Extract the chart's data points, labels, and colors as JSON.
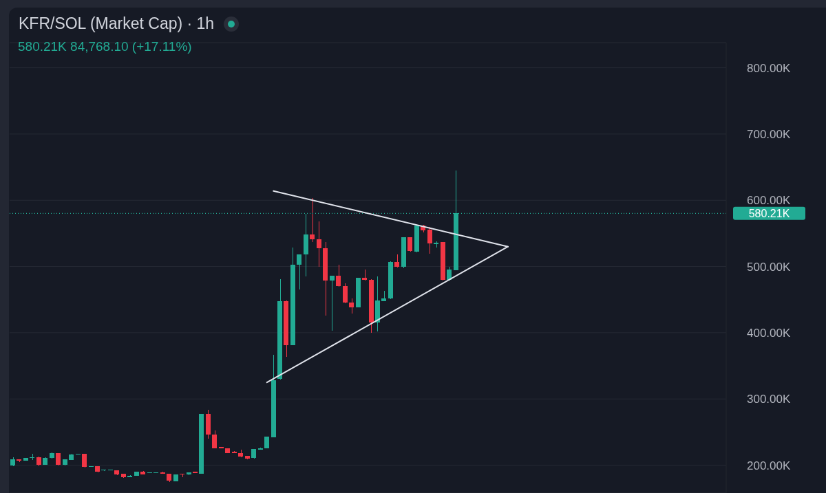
{
  "chart_data": {
    "type": "candlestick",
    "title": "KFR/SOL (Market Cap) · 1h",
    "subtitle": "580.21K 84,768.10 (+17.11%)",
    "categories": [
      null,
      null,
      null,
      null,
      null,
      null,
      null,
      null,
      null,
      null,
      null,
      null,
      null,
      null,
      null,
      null,
      null,
      null,
      null,
      null,
      null,
      null,
      null,
      null,
      null,
      null,
      null,
      null,
      null,
      null,
      null,
      null,
      null,
      null,
      null,
      null,
      null,
      null,
      null,
      null,
      null,
      null,
      null,
      null,
      null,
      null,
      null,
      null,
      null,
      null,
      null,
      null,
      null,
      null,
      null,
      null,
      null,
      null,
      null,
      null,
      null,
      null,
      null,
      null,
      null,
      null,
      null,
      null,
      null,
      null,
      null,
      null,
      null,
      null,
      null,
      null,
      null,
      null,
      null,
      null,
      null,
      null,
      null,
      null,
      null,
      null,
      null,
      null,
      null,
      null,
      null,
      null,
      null,
      null,
      null,
      null,
      null,
      null,
      null,
      null,
      null,
      null,
      null,
      null,
      null,
      null,
      null,
      null,
      null,
      null
    ],
    "ohlc": [
      [
        200,
        212,
        199,
        209
      ],
      [
        209,
        209,
        205,
        207
      ],
      [
        207,
        211,
        207,
        211
      ],
      [
        211,
        217,
        208,
        212
      ],
      [
        212,
        213,
        199,
        201
      ],
      [
        201,
        212,
        201,
        211
      ],
      [
        211,
        219,
        210,
        218
      ],
      [
        218,
        218,
        200,
        201
      ],
      [
        201,
        209,
        200,
        209
      ],
      [
        208,
        217,
        208,
        216
      ],
      [
        216,
        217,
        216,
        217
      ],
      [
        217,
        217,
        196,
        197
      ],
      [
        198,
        199,
        198,
        199
      ],
      [
        198,
        198,
        189,
        190
      ],
      [
        192,
        193,
        191,
        193
      ],
      [
        192,
        193,
        192,
        193
      ],
      [
        192,
        192,
        185,
        186
      ],
      [
        187,
        187,
        181,
        182
      ],
      [
        182,
        185,
        182,
        184
      ],
      [
        184,
        190,
        184,
        190
      ],
      [
        190,
        191,
        186,
        186
      ],
      [
        188,
        189,
        188,
        189
      ],
      [
        188,
        189,
        188,
        189
      ],
      [
        189,
        190,
        187,
        187
      ],
      [
        187,
        187,
        175,
        177
      ],
      [
        176,
        186,
        176,
        186
      ],
      [
        187,
        187,
        182,
        186
      ],
      [
        186,
        189,
        185,
        189
      ],
      [
        190,
        190,
        188,
        188
      ],
      [
        187,
        277,
        187,
        277
      ],
      [
        277,
        284,
        240,
        246
      ],
      [
        246,
        252,
        225,
        226
      ],
      [
        228,
        228,
        226,
        226
      ],
      [
        226,
        226,
        218,
        218
      ],
      [
        220,
        221,
        218,
        218
      ],
      [
        218,
        223,
        212,
        213
      ],
      [
        214,
        214,
        209,
        210
      ],
      [
        211,
        224,
        210,
        224
      ],
      [
        223,
        227,
        223,
        226
      ],
      [
        225,
        243,
        225,
        243
      ],
      [
        242,
        367,
        242,
        328
      ],
      [
        330,
        481,
        329,
        448
      ],
      [
        448,
        449,
        364,
        381
      ],
      [
        381,
        529,
        381,
        503
      ],
      [
        503,
        518,
        465,
        518
      ],
      [
        518,
        579,
        485,
        548
      ],
      [
        548,
        603,
        537,
        541
      ],
      [
        541,
        568,
        500,
        528
      ],
      [
        528,
        537,
        426,
        479
      ],
      [
        479,
        486,
        403,
        486
      ],
      [
        486,
        503,
        469,
        470
      ],
      [
        470,
        475,
        445,
        446
      ],
      [
        446,
        452,
        429,
        438
      ],
      [
        438,
        483,
        438,
        483
      ],
      [
        483,
        495,
        479,
        480
      ],
      [
        480,
        481,
        400,
        415
      ],
      [
        415,
        485,
        402,
        449
      ],
      [
        448,
        463,
        448,
        452
      ],
      [
        452,
        508,
        451,
        507
      ],
      [
        507,
        518,
        499,
        500
      ],
      [
        500,
        544,
        497,
        544
      ],
      [
        544,
        544,
        522,
        523
      ],
      [
        522,
        562,
        521,
        562
      ],
      [
        562,
        563,
        551,
        555
      ],
      [
        556,
        560,
        519,
        535
      ],
      [
        534,
        538,
        529,
        536
      ],
      [
        537,
        537,
        479,
        480
      ],
      [
        480,
        500,
        479,
        495
      ],
      [
        494,
        645,
        494,
        580.21
      ],
      null,
      null,
      null,
      null,
      null,
      null,
      null,
      null,
      null,
      null,
      null,
      null,
      null,
      null,
      null,
      null,
      null,
      null,
      null,
      null,
      null,
      null,
      null,
      null,
      null,
      null,
      null,
      null,
      null,
      null,
      null,
      null,
      null,
      null,
      null,
      null,
      null,
      null,
      null,
      null,
      null
    ],
    "colors": [
      "#22ab94",
      "#f23645",
      "#22ab94",
      "#22ab94",
      "#f23645",
      "#22ab94",
      "#22ab94",
      "#f23645",
      "#22ab94",
      "#22ab94",
      "#22ab94",
      "#f23645",
      "#22ab94",
      "#f23645",
      "#22ab94",
      "#22ab94",
      "#f23645",
      "#f23645",
      "#22ab94",
      "#22ab94",
      "#f23645",
      "#22ab94",
      "#22ab94",
      "#f23645",
      "#f23645",
      "#22ab94",
      "#f23645",
      "#22ab94",
      "#f23645",
      "#22ab94",
      "#f23645",
      "#f23645",
      "#f23645",
      "#f23645",
      "#f23645",
      "#f23645",
      "#f23645",
      "#22ab94",
      "#22ab94",
      "#22ab94",
      "#22ab94",
      "#22ab94",
      "#f23645",
      "#22ab94",
      "#22ab94",
      "#22ab94",
      "#f23645",
      "#f23645",
      "#f23645",
      "#22ab94",
      "#f23645",
      "#f23645",
      "#f23645",
      "#22ab94",
      "#f23645",
      "#f23645",
      "#22ab94",
      "#22ab94",
      "#22ab94",
      "#f23645",
      "#22ab94",
      "#f23645",
      "#22ab94",
      "#f23645",
      "#f23645",
      "#22ab94",
      "#f23645",
      "#22ab94",
      "#22ab94",
      null,
      null,
      null,
      null,
      null,
      null,
      null,
      null,
      null,
      null,
      null,
      null,
      null,
      null,
      null,
      null,
      null,
      null,
      null,
      null,
      null,
      null,
      null,
      null,
      null,
      null,
      null,
      null,
      null,
      null,
      null,
      null,
      null,
      null,
      null,
      null,
      null,
      null,
      null,
      null,
      null
    ],
    "series": [
      {
        "type": "line",
        "color": "#e0e3eb",
        "values": [
          null,
          null,
          null,
          null,
          null,
          null,
          null,
          null,
          null,
          null,
          null,
          null,
          null,
          null,
          null,
          null,
          null,
          null,
          null,
          null,
          null,
          null,
          null,
          null,
          null,
          null,
          null,
          null,
          null,
          null,
          null,
          null,
          null,
          null,
          null,
          null,
          null,
          null,
          null,
          null,
          614,
          null,
          null,
          null,
          null,
          null,
          null,
          null,
          null,
          null,
          null,
          null,
          null,
          null,
          null,
          null,
          null,
          null,
          null,
          null,
          null,
          null,
          null,
          null,
          null,
          null,
          null,
          null,
          null,
          null,
          null,
          null,
          null,
          null,
          null,
          null,
          530,
          null,
          null,
          null,
          null,
          null,
          null,
          null,
          null,
          null,
          null,
          null,
          null,
          null,
          null,
          null,
          null,
          null,
          null,
          null,
          null,
          null,
          null,
          null,
          null,
          null,
          null,
          null,
          null,
          null,
          null,
          null,
          null,
          null
        ]
      },
      {
        "type": "line",
        "color": "#e0e3eb",
        "values": [
          null,
          null,
          null,
          null,
          null,
          null,
          null,
          null,
          null,
          null,
          null,
          null,
          null,
          null,
          null,
          null,
          null,
          null,
          null,
          null,
          null,
          null,
          null,
          null,
          null,
          null,
          null,
          null,
          null,
          null,
          null,
          null,
          null,
          null,
          null,
          null,
          null,
          null,
          null,
          325,
          null,
          null,
          null,
          null,
          null,
          null,
          null,
          null,
          null,
          null,
          null,
          null,
          null,
          null,
          null,
          null,
          null,
          null,
          null,
          null,
          null,
          null,
          null,
          null,
          null,
          null,
          null,
          null,
          null,
          null,
          null,
          null,
          null,
          null,
          null,
          null,
          530,
          null,
          null,
          null,
          null,
          null,
          null,
          null,
          null,
          null,
          null,
          null,
          null,
          null,
          null,
          null,
          null,
          null,
          null,
          null,
          null,
          null,
          null,
          null,
          null,
          null,
          null,
          null,
          null,
          null,
          null,
          null,
          null,
          null
        ]
      }
    ],
    "ylim": [
      158,
      838
    ],
    "yticks": [
      {
        "value": 200,
        "label": "200.00K"
      },
      {
        "value": 300,
        "label": "300.00K"
      },
      {
        "value": 400,
        "label": "400.00K"
      },
      {
        "value": 500,
        "label": "500.00K"
      },
      {
        "value": 600,
        "label": "600.00K"
      },
      {
        "value": 700,
        "label": "700.00K"
      },
      {
        "value": 800,
        "label": "800.00K"
      }
    ],
    "ref_lines": [
      {
        "axis": "y",
        "value": 580.21,
        "label": "580.21K",
        "color": "#22ab94",
        "line_style": "dotted"
      }
    ],
    "grid": "y",
    "tick_labels": "y",
    "marker": "none"
  }
}
